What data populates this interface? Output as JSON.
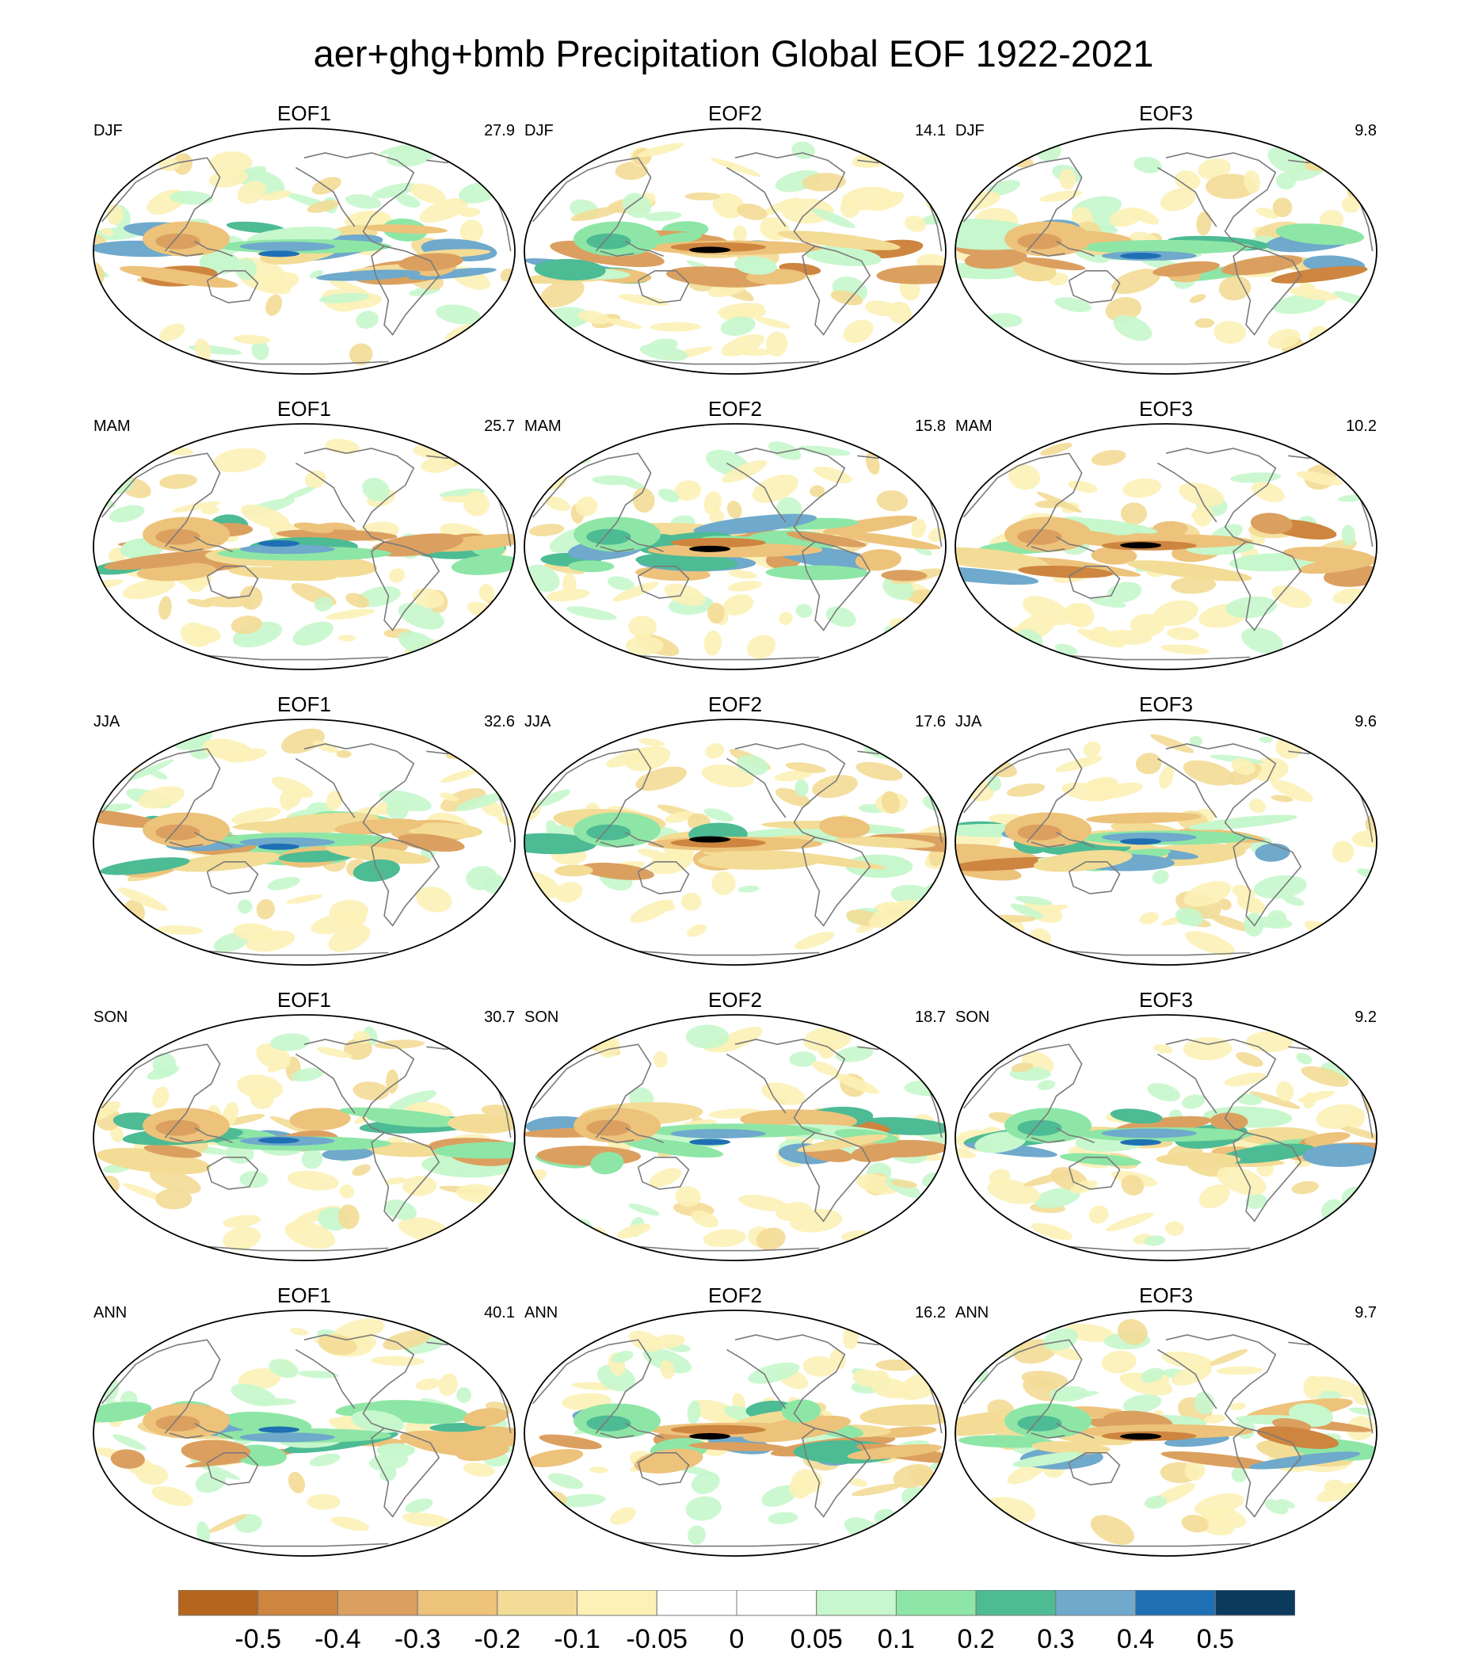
{
  "title": "aer+ghg+bmb Precipitation Global EOF 1922-2021",
  "chart_data": [
    {
      "type": "heatmap",
      "projection": "robinson-like",
      "title": "EOF1",
      "season": "DJF",
      "variance": "27.9",
      "col": 0,
      "row": 0
    },
    {
      "type": "heatmap",
      "projection": "robinson-like",
      "title": "EOF2",
      "season": "DJF",
      "variance": "14.1",
      "col": 1,
      "row": 0
    },
    {
      "type": "heatmap",
      "projection": "robinson-like",
      "title": "EOF3",
      "season": "DJF",
      "variance": "9.8",
      "col": 2,
      "row": 0
    },
    {
      "type": "heatmap",
      "projection": "robinson-like",
      "title": "EOF1",
      "season": "MAM",
      "variance": "25.7",
      "col": 0,
      "row": 1
    },
    {
      "type": "heatmap",
      "projection": "robinson-like",
      "title": "EOF2",
      "season": "MAM",
      "variance": "15.8",
      "col": 1,
      "row": 1
    },
    {
      "type": "heatmap",
      "projection": "robinson-like",
      "title": "EOF3",
      "season": "MAM",
      "variance": "10.2",
      "col": 2,
      "row": 1
    },
    {
      "type": "heatmap",
      "projection": "robinson-like",
      "title": "EOF1",
      "season": "JJA",
      "variance": "32.6",
      "col": 0,
      "row": 2
    },
    {
      "type": "heatmap",
      "projection": "robinson-like",
      "title": "EOF2",
      "season": "JJA",
      "variance": "17.6",
      "col": 1,
      "row": 2
    },
    {
      "type": "heatmap",
      "projection": "robinson-like",
      "title": "EOF3",
      "season": "JJA",
      "variance": "9.6",
      "col": 2,
      "row": 2
    },
    {
      "type": "heatmap",
      "projection": "robinson-like",
      "title": "EOF1",
      "season": "SON",
      "variance": "30.7",
      "col": 0,
      "row": 3
    },
    {
      "type": "heatmap",
      "projection": "robinson-like",
      "title": "EOF2",
      "season": "SON",
      "variance": "18.7",
      "col": 1,
      "row": 3
    },
    {
      "type": "heatmap",
      "projection": "robinson-like",
      "title": "EOF3",
      "season": "SON",
      "variance": "9.2",
      "col": 2,
      "row": 3
    },
    {
      "type": "heatmap",
      "projection": "robinson-like",
      "title": "EOF1",
      "season": "ANN",
      "variance": "40.1",
      "col": 0,
      "row": 4
    },
    {
      "type": "heatmap",
      "projection": "robinson-like",
      "title": "EOF2",
      "season": "ANN",
      "variance": "16.2",
      "col": 1,
      "row": 4
    },
    {
      "type": "heatmap",
      "projection": "robinson-like",
      "title": "EOF3",
      "season": "ANN",
      "variance": "9.7",
      "col": 2,
      "row": 4
    }
  ],
  "colorbar": {
    "colors": [
      "#b5651d",
      "#cd853f",
      "#dba060",
      "#edc27a",
      "#f3dc96",
      "#fcf1b6",
      "#ffffff",
      "#ffffff",
      "#c7f7cc",
      "#8ee6a6",
      "#4dbb94",
      "#6fa9cc",
      "#1f6fb4",
      "#0a3a5c"
    ],
    "labels": [
      "-0.5",
      "-0.4",
      "-0.3",
      "-0.2",
      "-0.1",
      "-0.05",
      "0",
      "0.05",
      "0.1",
      "0.2",
      "0.3",
      "0.4",
      "0.5"
    ]
  }
}
